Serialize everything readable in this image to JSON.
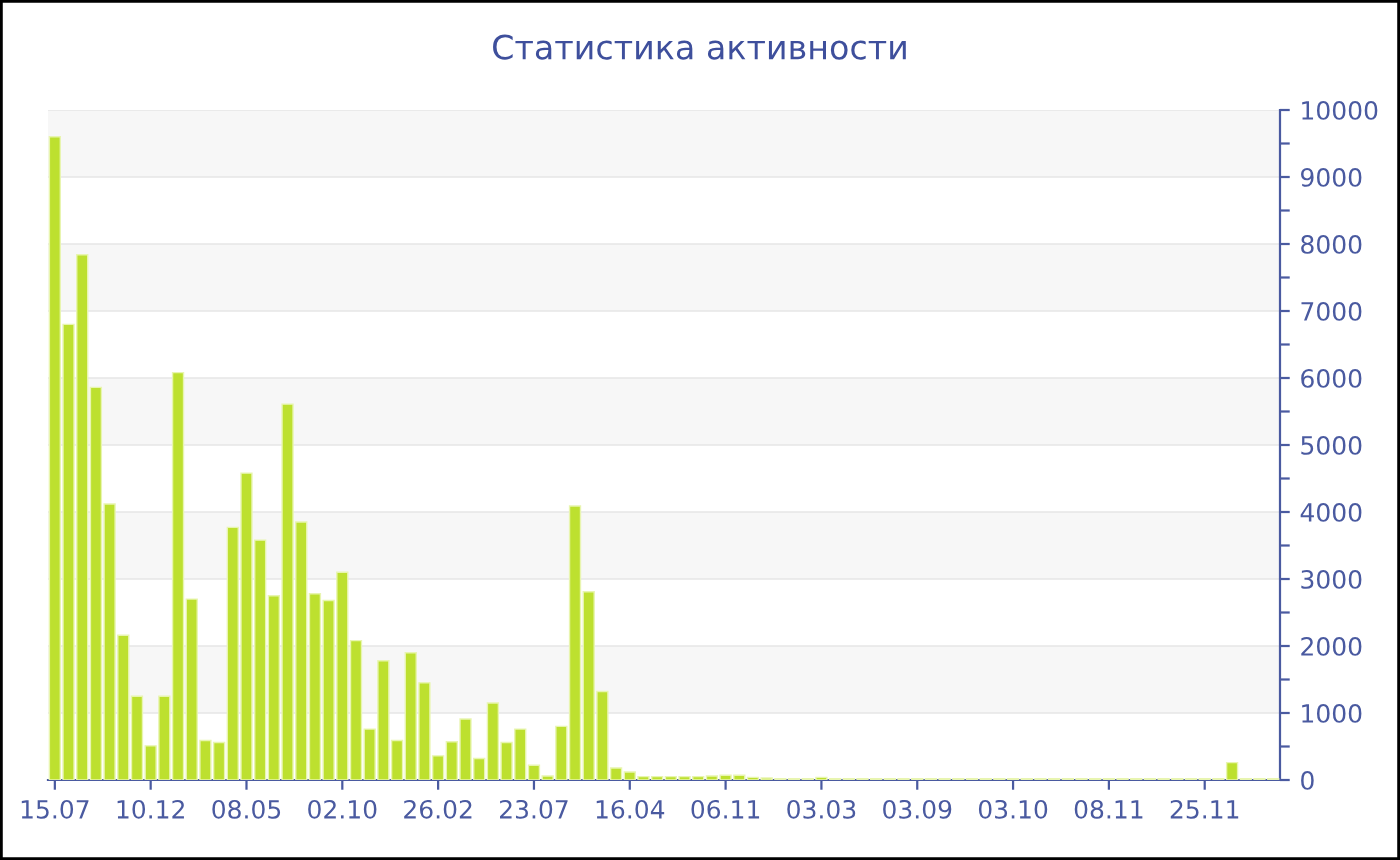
{
  "chart_data": {
    "type": "bar",
    "title": "Статистика активности",
    "categories": [
      "15.07",
      null,
      null,
      null,
      null,
      null,
      null,
      "10.12",
      null,
      null,
      null,
      null,
      null,
      null,
      "08.05",
      null,
      null,
      null,
      null,
      null,
      null,
      "02.10",
      null,
      null,
      null,
      null,
      null,
      null,
      "26.02",
      null,
      null,
      null,
      null,
      null,
      null,
      "23.07",
      null,
      null,
      null,
      null,
      null,
      null,
      "16.04",
      null,
      null,
      null,
      null,
      null,
      null,
      "06.11",
      null,
      null,
      null,
      null,
      null,
      null,
      "03.03",
      null,
      null,
      null,
      null,
      null,
      null,
      "03.09",
      null,
      null,
      null,
      null,
      null,
      null,
      "03.10",
      null,
      null,
      null,
      null,
      null,
      null,
      "08.11",
      null,
      null,
      null,
      null,
      null,
      null,
      "25.11",
      null,
      null,
      null,
      null,
      null
    ],
    "values": [
      9600,
      6800,
      7840,
      5860,
      4120,
      2160,
      1250,
      510,
      1250,
      6080,
      2700,
      590,
      560,
      3770,
      4580,
      3580,
      2750,
      5610,
      3850,
      2780,
      2680,
      3100,
      2080,
      760,
      1780,
      590,
      1900,
      1450,
      360,
      570,
      910,
      320,
      1150,
      560,
      760,
      220,
      60,
      800,
      4090,
      2810,
      1320,
      180,
      120,
      50,
      50,
      50,
      50,
      50,
      60,
      70,
      70,
      40,
      30,
      20,
      20,
      20,
      40,
      20,
      20,
      20,
      20,
      20,
      20,
      20,
      20,
      20,
      20,
      20,
      20,
      20,
      20,
      20,
      20,
      20,
      20,
      20,
      20,
      20,
      20,
      20,
      20,
      20,
      20,
      20,
      20,
      20,
      260,
      20,
      20,
      20
    ],
    "color": "#bde02f",
    "ylim": [
      0,
      10000
    ],
    "yticks": [
      0,
      {
        "value": 500,
        "label": null
      },
      1000,
      {
        "value": 1500,
        "label": null
      },
      2000,
      {
        "value": 2500,
        "label": null
      },
      3000,
      {
        "value": 3500,
        "label": null
      },
      4000,
      {
        "value": 4500,
        "label": null
      },
      5000,
      {
        "value": 5500,
        "label": null
      },
      6000,
      {
        "value": 6500,
        "label": null
      },
      7000,
      {
        "value": 7500,
        "label": null
      },
      8000,
      {
        "value": 8500,
        "label": null
      },
      9000,
      {
        "value": 9500,
        "label": null
      },
      10000
    ],
    "grid": "y"
  }
}
